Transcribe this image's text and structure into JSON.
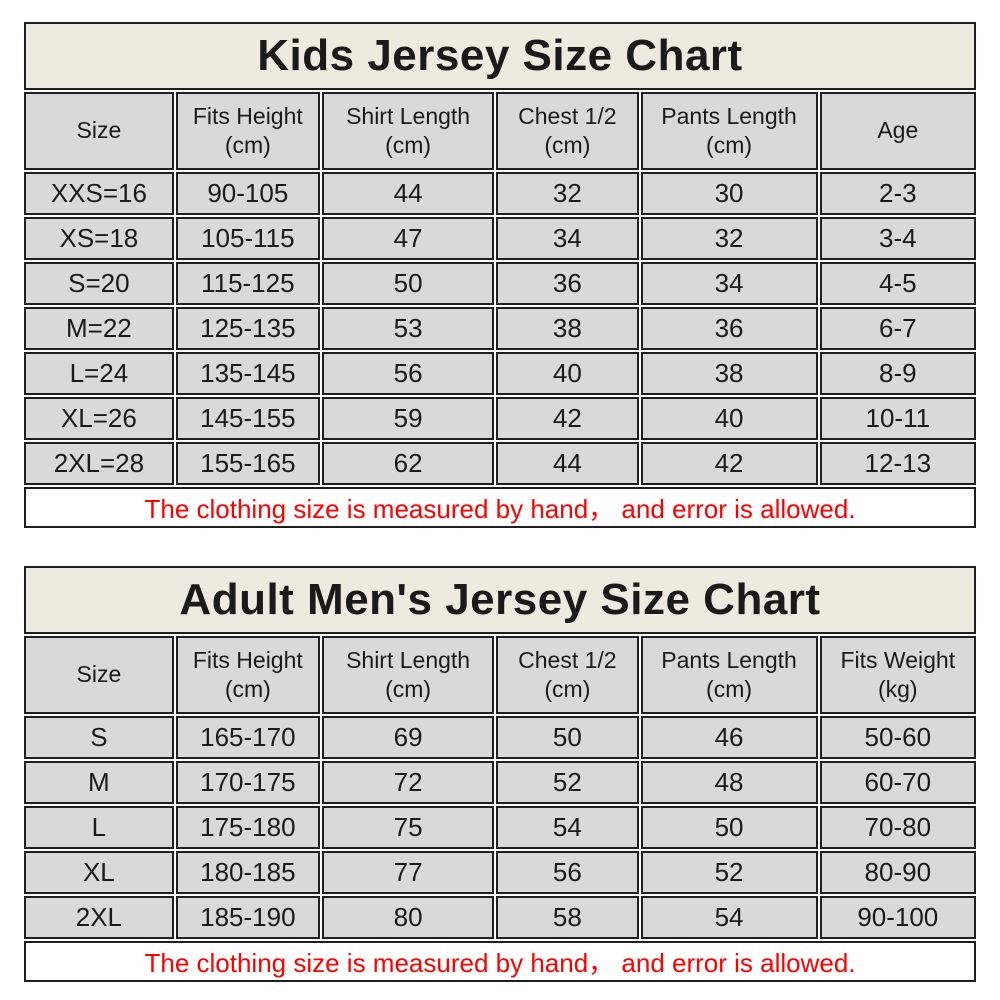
{
  "colors": {
    "title_background": "#edebe0",
    "cell_background": "#d9d9d9",
    "note_background": "#ffffff",
    "grid_border": "#1f1f1f",
    "note_text": "#ff0000",
    "body_text": "#1a1a1a"
  },
  "chart_data": [
    {
      "type": "table",
      "title": "Kids Jersey Size Chart",
      "columns": [
        {
          "label": "Size",
          "unit": ""
        },
        {
          "label": "Fits Height",
          "unit": "(cm)"
        },
        {
          "label": "Shirt Length",
          "unit": "(cm)"
        },
        {
          "label": "Chest 1/2",
          "unit": "(cm)"
        },
        {
          "label": "Pants Length",
          "unit": "(cm)"
        },
        {
          "label": "Age",
          "unit": ""
        }
      ],
      "rows": [
        [
          "XXS=16",
          "90-105",
          "44",
          "32",
          "30",
          "2-3"
        ],
        [
          "XS=18",
          "105-115",
          "47",
          "34",
          "32",
          "3-4"
        ],
        [
          "S=20",
          "115-125",
          "50",
          "36",
          "34",
          "4-5"
        ],
        [
          "M=22",
          "125-135",
          "53",
          "38",
          "36",
          "6-7"
        ],
        [
          "L=24",
          "135-145",
          "56",
          "40",
          "38",
          "8-9"
        ],
        [
          "XL=26",
          "145-155",
          "59",
          "42",
          "40",
          "10-11"
        ],
        [
          "2XL=28",
          "155-165",
          "62",
          "44",
          "42",
          "12-13"
        ]
      ],
      "note": "The clothing size is measured by hand， and error is allowed."
    },
    {
      "type": "table",
      "title": "Adult Men's Jersey Size Chart",
      "columns": [
        {
          "label": "Size",
          "unit": ""
        },
        {
          "label": "Fits Height",
          "unit": "(cm)"
        },
        {
          "label": "Shirt Length",
          "unit": "(cm)"
        },
        {
          "label": "Chest 1/2",
          "unit": "(cm)"
        },
        {
          "label": "Pants Length",
          "unit": "(cm)"
        },
        {
          "label": "Fits Weight",
          "unit": "(kg)"
        }
      ],
      "rows": [
        [
          "S",
          "165-170",
          "69",
          "50",
          "46",
          "50-60"
        ],
        [
          "M",
          "170-175",
          "72",
          "52",
          "48",
          "60-70"
        ],
        [
          "L",
          "175-180",
          "75",
          "54",
          "50",
          "70-80"
        ],
        [
          "XL",
          "180-185",
          "77",
          "56",
          "52",
          "80-90"
        ],
        [
          "2XL",
          "185-190",
          "80",
          "58",
          "54",
          "90-100"
        ]
      ],
      "note": "The clothing size is measured by hand， and error is allowed."
    }
  ]
}
